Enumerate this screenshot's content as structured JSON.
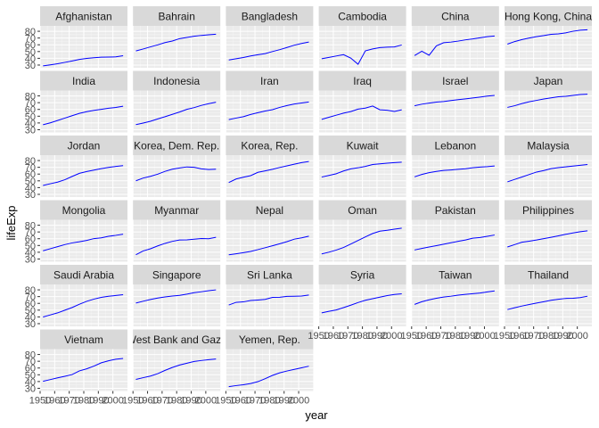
{
  "chart_data": {
    "type": "line",
    "facet_layout": "wrap",
    "xlabel": "year",
    "ylabel": "lifeExp",
    "x": [
      1952,
      1957,
      1962,
      1967,
      1972,
      1977,
      1982,
      1987,
      1992,
      1997,
      2002,
      2007
    ],
    "xlim": [
      1950,
      2010
    ],
    "ylim": [
      26,
      88
    ],
    "x_ticks": [
      1950,
      1960,
      1970,
      1980,
      1990,
      2000
    ],
    "x_tick_labels": [
      "1950",
      "1960",
      "1970",
      "1980",
      "1990",
      "2000"
    ],
    "y_ticks": [
      30,
      40,
      50,
      60,
      70,
      80
    ],
    "y_tick_labels": [
      "30",
      "40",
      "50",
      "60",
      "70",
      "80"
    ],
    "grid": true,
    "line_color": "#0000ff",
    "panel_background": "#ebebeb",
    "strip_background": "#d9d9d9",
    "series": [
      {
        "name": "Afghanistan",
        "values": [
          28.8,
          30.3,
          32.0,
          34.0,
          36.1,
          38.4,
          39.9,
          40.8,
          41.7,
          41.8,
          42.1,
          43.8
        ]
      },
      {
        "name": "Bahrain",
        "values": [
          50.9,
          53.8,
          56.9,
          59.9,
          63.3,
          65.6,
          69.1,
          70.8,
          72.6,
          73.9,
          74.8,
          75.6
        ]
      },
      {
        "name": "Bangladesh",
        "values": [
          37.5,
          39.3,
          41.2,
          43.5,
          45.3,
          46.9,
          50.0,
          52.8,
          56.0,
          59.4,
          62.0,
          64.1
        ]
      },
      {
        "name": "Cambodia",
        "values": [
          39.4,
          41.4,
          43.4,
          45.4,
          40.3,
          31.2,
          51.0,
          53.9,
          55.8,
          56.5,
          56.8,
          59.7
        ]
      },
      {
        "name": "China",
        "values": [
          44.0,
          50.5,
          44.5,
          58.4,
          63.1,
          64.0,
          65.5,
          67.3,
          68.7,
          70.4,
          72.0,
          73.0
        ]
      },
      {
        "name": "Hong Kong, China",
        "values": [
          61.0,
          64.8,
          67.7,
          70.0,
          72.0,
          73.6,
          75.5,
          76.2,
          77.6,
          80.0,
          81.5,
          82.2
        ]
      },
      {
        "name": "India",
        "values": [
          37.4,
          40.2,
          43.6,
          47.2,
          50.7,
          54.2,
          56.6,
          58.6,
          60.2,
          61.8,
          62.9,
          64.7
        ]
      },
      {
        "name": "Indonesia",
        "values": [
          37.5,
          39.9,
          42.5,
          46.0,
          49.2,
          52.7,
          56.2,
          60.1,
          62.7,
          66.0,
          68.6,
          70.7
        ]
      },
      {
        "name": "Iran",
        "values": [
          44.9,
          47.2,
          49.3,
          52.5,
          55.2,
          57.7,
          59.6,
          63.0,
          65.7,
          68.0,
          69.5,
          71.0
        ]
      },
      {
        "name": "Iraq",
        "values": [
          45.3,
          48.4,
          51.5,
          54.5,
          56.9,
          60.4,
          62.0,
          65.0,
          59.5,
          58.8,
          57.0,
          59.5
        ]
      },
      {
        "name": "Israel",
        "values": [
          65.4,
          67.8,
          69.4,
          70.8,
          71.6,
          73.1,
          74.5,
          75.6,
          76.9,
          78.3,
          79.7,
          80.7
        ]
      },
      {
        "name": "Japan",
        "values": [
          63.0,
          65.5,
          68.7,
          71.4,
          73.4,
          75.4,
          77.1,
          78.7,
          79.4,
          80.7,
          82.0,
          82.6
        ]
      },
      {
        "name": "Jordan",
        "values": [
          43.2,
          45.7,
          48.1,
          51.6,
          56.5,
          61.1,
          63.7,
          65.9,
          68.0,
          69.8,
          71.3,
          72.5
        ]
      },
      {
        "name": "Korea, Dem. Rep.",
        "values": [
          50.1,
          54.1,
          56.7,
          59.9,
          64.0,
          67.2,
          69.1,
          70.6,
          70.0,
          67.7,
          66.7,
          67.3
        ]
      },
      {
        "name": "Korea, Rep.",
        "values": [
          47.5,
          52.7,
          55.3,
          57.7,
          62.6,
          64.8,
          67.1,
          69.8,
          72.2,
          74.6,
          77.0,
          78.6
        ]
      },
      {
        "name": "Kuwait",
        "values": [
          55.6,
          58.0,
          60.5,
          64.6,
          67.7,
          69.3,
          71.3,
          74.2,
          75.2,
          76.2,
          76.9,
          77.6
        ]
      },
      {
        "name": "Lebanon",
        "values": [
          55.9,
          59.5,
          62.1,
          63.9,
          65.4,
          66.1,
          67.0,
          67.9,
          69.3,
          70.3,
          71.0,
          72.0
        ]
      },
      {
        "name": "Malaysia",
        "values": [
          48.5,
          52.1,
          55.7,
          59.4,
          63.0,
          65.3,
          68.0,
          69.5,
          70.7,
          71.9,
          73.0,
          74.2
        ]
      },
      {
        "name": "Mongolia",
        "values": [
          42.2,
          45.2,
          48.3,
          51.3,
          53.8,
          55.5,
          57.5,
          60.2,
          61.3,
          63.6,
          65.0,
          66.8
        ]
      },
      {
        "name": "Myanmar",
        "values": [
          36.3,
          41.9,
          45.1,
          49.4,
          53.1,
          56.1,
          58.1,
          58.3,
          59.3,
          60.3,
          59.9,
          62.1
        ]
      },
      {
        "name": "Nepal",
        "values": [
          36.2,
          37.7,
          39.4,
          41.2,
          43.9,
          46.7,
          49.6,
          52.5,
          55.7,
          59.4,
          61.3,
          63.8
        ]
      },
      {
        "name": "Oman",
        "values": [
          37.6,
          40.1,
          43.2,
          47.0,
          52.1,
          57.4,
          62.7,
          67.7,
          71.2,
          72.5,
          74.2,
          75.6
        ]
      },
      {
        "name": "Pakistan",
        "values": [
          43.4,
          45.6,
          47.7,
          49.8,
          51.9,
          54.0,
          56.2,
          58.2,
          60.8,
          61.8,
          63.6,
          65.5
        ]
      },
      {
        "name": "Philippines",
        "values": [
          47.8,
          51.3,
          54.8,
          56.4,
          58.1,
          60.1,
          62.1,
          64.2,
          66.5,
          68.6,
          70.3,
          71.7
        ]
      },
      {
        "name": "Saudi Arabia",
        "values": [
          39.9,
          42.9,
          45.9,
          49.9,
          53.9,
          58.7,
          63.0,
          66.3,
          68.8,
          70.5,
          71.6,
          72.8
        ]
      },
      {
        "name": "Singapore",
        "values": [
          60.4,
          63.2,
          65.8,
          67.9,
          69.5,
          70.8,
          71.8,
          73.6,
          75.8,
          77.2,
          78.8,
          80.0
        ]
      },
      {
        "name": "Sri Lanka",
        "values": [
          57.6,
          61.5,
          62.2,
          64.3,
          65.0,
          65.9,
          68.8,
          69.0,
          70.4,
          70.5,
          70.8,
          72.4
        ]
      },
      {
        "name": "Syria",
        "values": [
          45.9,
          48.3,
          50.3,
          53.7,
          57.3,
          61.2,
          64.6,
          66.9,
          69.2,
          71.5,
          73.1,
          74.1
        ]
      },
      {
        "name": "Taiwan",
        "values": [
          58.5,
          62.4,
          65.2,
          67.5,
          69.4,
          70.6,
          72.2,
          73.4,
          74.3,
          75.3,
          77.0,
          78.4
        ]
      },
      {
        "name": "Thailand",
        "values": [
          50.8,
          53.6,
          56.1,
          58.3,
          60.4,
          62.5,
          64.6,
          66.1,
          67.3,
          67.5,
          68.6,
          70.6
        ]
      },
      {
        "name": "Vietnam",
        "values": [
          40.4,
          42.9,
          45.4,
          47.8,
          50.3,
          55.8,
          58.8,
          62.8,
          67.7,
          70.7,
          73.0,
          74.2
        ]
      },
      {
        "name": "West Bank and Gaza",
        "values": [
          43.2,
          45.7,
          48.1,
          51.6,
          56.5,
          60.8,
          64.4,
          67.0,
          69.7,
          71.1,
          72.4,
          73.4
        ]
      },
      {
        "name": "Yemen, Rep.",
        "values": [
          32.5,
          34.0,
          35.2,
          37.0,
          39.8,
          44.2,
          49.1,
          52.9,
          55.6,
          58.0,
          60.3,
          62.7
        ]
      }
    ]
  }
}
